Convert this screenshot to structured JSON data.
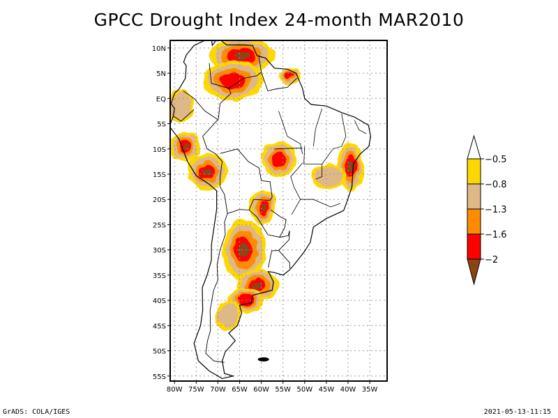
{
  "title": "GPCC Drought Index 24-month MAR2010",
  "credits": {
    "left": "GrADS: COLA/IGES",
    "right": "2021-05-13-11:15"
  },
  "map": {
    "region": "South America",
    "lon_range": [
      -81,
      -31
    ],
    "lat_range": [
      -56,
      11.5
    ],
    "lat_ticks": [
      {
        "value": 10,
        "label": "10N"
      },
      {
        "value": 5,
        "label": "5N"
      },
      {
        "value": 0,
        "label": "EQ"
      },
      {
        "value": -5,
        "label": "5S"
      },
      {
        "value": -10,
        "label": "10S"
      },
      {
        "value": -15,
        "label": "15S"
      },
      {
        "value": -20,
        "label": "20S"
      },
      {
        "value": -25,
        "label": "25S"
      },
      {
        "value": -30,
        "label": "30S"
      },
      {
        "value": -35,
        "label": "35S"
      },
      {
        "value": -40,
        "label": "40S"
      },
      {
        "value": -45,
        "label": "45S"
      },
      {
        "value": -50,
        "label": "50S"
      },
      {
        "value": -55,
        "label": "55S"
      }
    ],
    "lon_ticks": [
      {
        "value": -80,
        "label": "80W"
      },
      {
        "value": -75,
        "label": "75W"
      },
      {
        "value": -70,
        "label": "70W"
      },
      {
        "value": -65,
        "label": "65W"
      },
      {
        "value": -60,
        "label": "60W"
      },
      {
        "value": -55,
        "label": "55W"
      },
      {
        "value": -50,
        "label": "50W"
      },
      {
        "value": -45,
        "label": "45W"
      },
      {
        "value": -40,
        "label": "40W"
      },
      {
        "value": -35,
        "label": "35W"
      }
    ],
    "grid": true,
    "drought_regions": [
      {
        "name": "Venezuela",
        "lon": -64.5,
        "lat": 8.5,
        "rx": 7.5,
        "ry": 3.5,
        "max_class": 5
      },
      {
        "name": "Colombia-Venezuela border",
        "lon": -66.5,
        "lat": 3.5,
        "rx": 7,
        "ry": 4,
        "max_class": 4
      },
      {
        "name": "French Guiana coast",
        "lon": -53.5,
        "lat": 4.5,
        "rx": 2.5,
        "ry": 1.5,
        "max_class": 4
      },
      {
        "name": "Ecuador",
        "lon": -78.5,
        "lat": -1.5,
        "rx": 3,
        "ry": 3.5,
        "max_class": 2
      },
      {
        "name": "Northern Peru",
        "lon": -77.5,
        "lat": -9.5,
        "rx": 3.5,
        "ry": 3,
        "max_class": 5
      },
      {
        "name": "Southern Peru",
        "lon": -72.5,
        "lat": -14.5,
        "rx": 4.5,
        "ry": 3.5,
        "max_class": 5
      },
      {
        "name": "Mato Grosso",
        "lon": -56,
        "lat": -12,
        "rx": 4,
        "ry": 3.5,
        "max_class": 4
      },
      {
        "name": "Bahia coast",
        "lon": -39.5,
        "lat": -13.5,
        "rx": 3,
        "ry": 5,
        "max_class": 5
      },
      {
        "name": "Minas Gerais",
        "lon": -44.5,
        "lat": -15.5,
        "rx": 4,
        "ry": 2.5,
        "max_class": 2
      },
      {
        "name": "Paraguay",
        "lon": -59.5,
        "lat": -21.5,
        "rx": 3,
        "ry": 3.5,
        "max_class": 5
      },
      {
        "name": "Northern Argentina",
        "lon": -64,
        "lat": -30,
        "rx": 5,
        "ry": 6,
        "max_class": 5
      },
      {
        "name": "Buenos Aires",
        "lon": -61,
        "lat": -37,
        "rx": 5,
        "ry": 3,
        "max_class": 5
      },
      {
        "name": "La Pampa",
        "lon": -63.5,
        "lat": -40,
        "rx": 4,
        "ry": 2.5,
        "max_class": 4
      },
      {
        "name": "Patagonia",
        "lon": -67.5,
        "lat": -43,
        "rx": 3,
        "ry": 3,
        "max_class": 2
      }
    ]
  },
  "legend": {
    "title": "",
    "levels": [
      {
        "label": "",
        "color": "#ffffff",
        "range": "> -0.5"
      },
      {
        "label": "-0.5",
        "color": "#ffd700",
        "range": "-0.8 to -0.5"
      },
      {
        "label": "-0.8",
        "color": "#deb887",
        "range": "-1.3 to -0.8"
      },
      {
        "label": "-1.3",
        "color": "#ff8c00",
        "range": "-1.6 to -1.3"
      },
      {
        "label": "-1.6",
        "color": "#ff0000",
        "range": "-2 to -1.6"
      },
      {
        "label": "-2",
        "color": "#8b4513",
        "range": "< -2"
      }
    ]
  }
}
